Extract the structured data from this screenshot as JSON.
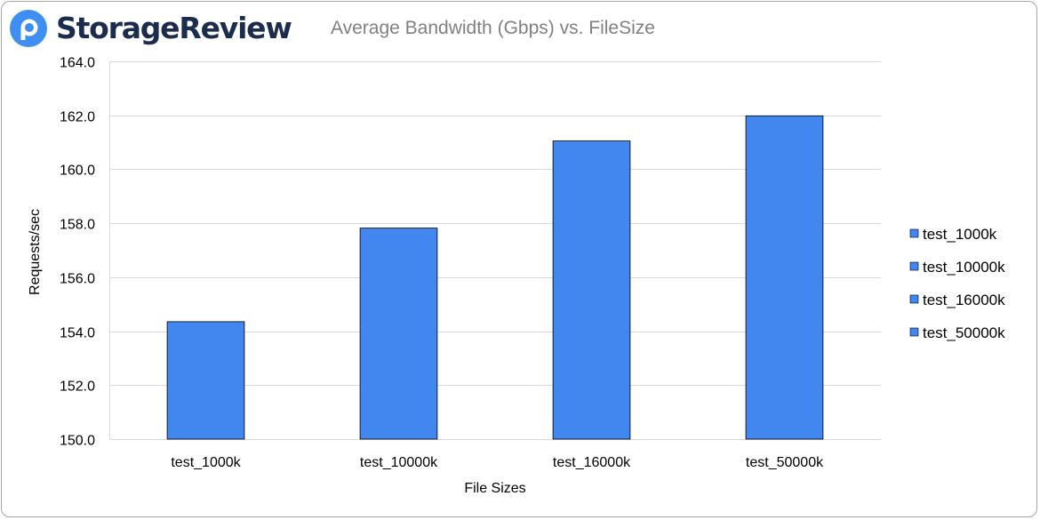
{
  "brand": {
    "name": "StorageReview",
    "logo_icon": "storagereview-logo-icon"
  },
  "colors": {
    "bar_fill": "#4287f0",
    "bar_stroke": "#000000",
    "grid": "#d9d9d9",
    "brand_dark": "#1c2c4c",
    "logo_blue": "#3f8ff2"
  },
  "chart_data": {
    "type": "bar",
    "title": "Average Bandwidth (Gbps) vs. FileSize",
    "xlabel": "File Sizes",
    "ylabel": "Requests/sec",
    "categories": [
      "test_1000k",
      "test_10000k",
      "test_16000k",
      "test_50000k"
    ],
    "values": [
      154.35,
      157.82,
      161.05,
      161.98
    ],
    "ylim": [
      150.0,
      164.0
    ],
    "ytick_step": 2.0,
    "ytick_labels": [
      "150.0",
      "152.0",
      "154.0",
      "156.0",
      "158.0",
      "160.0",
      "162.0",
      "164.0"
    ],
    "grid": true,
    "legend": {
      "position": "right",
      "entries": [
        "test_1000k",
        "test_10000k",
        "test_16000k",
        "test_50000k"
      ]
    }
  }
}
